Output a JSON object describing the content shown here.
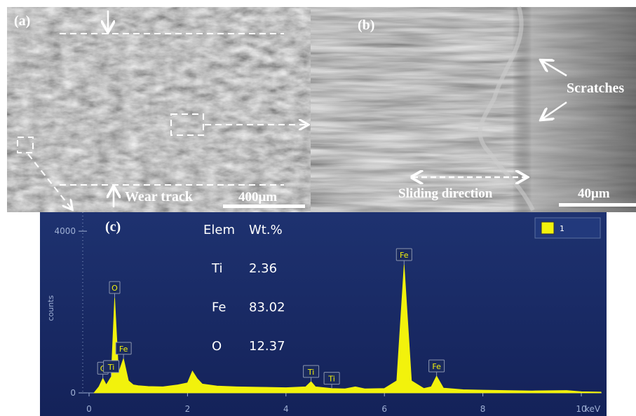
{
  "panels": {
    "a": {
      "label": "(a)",
      "track_label": "Wear track",
      "scale_bar": "400μm"
    },
    "b": {
      "label": "(b)",
      "annotation": "Scratches",
      "direction_label": "Sliding direction",
      "scale_bar": "40μm"
    }
  },
  "chart_data": {
    "type": "area",
    "label": "(c)",
    "y_label": "counts",
    "x_label": "keV",
    "x": [
      0.1,
      0.2,
      0.28,
      0.35,
      0.45,
      0.52,
      0.6,
      0.7,
      0.8,
      0.9,
      1.0,
      1.2,
      1.5,
      1.8,
      2.0,
      2.1,
      2.2,
      2.3,
      2.6,
      3.0,
      3.5,
      4.0,
      4.4,
      4.51,
      4.6,
      4.93,
      5.2,
      5.41,
      5.6,
      6.0,
      6.25,
      6.4,
      6.55,
      6.8,
      6.95,
      7.06,
      7.2,
      7.6,
      8.0,
      9.0,
      9.7,
      10.0,
      10.4
    ],
    "series": [
      {
        "name": "1",
        "color": "#f2f20c",
        "values": [
          0,
          150,
          360,
          200,
          400,
          2355,
          500,
          850,
          300,
          200,
          180,
          160,
          150,
          200,
          250,
          540,
          350,
          220,
          170,
          150,
          140,
          130,
          150,
          280,
          150,
          110,
          100,
          150,
          100,
          110,
          300,
          3170,
          300,
          110,
          150,
          415,
          120,
          80,
          70,
          50,
          60,
          30,
          20
        ]
      }
    ],
    "xlim": [
      0,
      10.4
    ],
    "ylim": [
      0,
      4400
    ],
    "xticks": [
      0,
      2,
      4,
      6,
      8,
      10
    ],
    "yticks": [
      0,
      4000
    ],
    "peaks": [
      {
        "label": "C",
        "x": 0.28
      },
      {
        "label": "Ti",
        "x": 0.45
      },
      {
        "label": "O",
        "x": 0.52
      },
      {
        "label": "Fe",
        "x": 0.7
      },
      {
        "label": "Ti",
        "x": 4.51
      },
      {
        "label": "Ti",
        "x": 4.93
      },
      {
        "label": "Fe",
        "x": 6.4
      },
      {
        "label": "Fe",
        "x": 7.06
      }
    ],
    "table": {
      "header": [
        "Elem",
        "Wt.%"
      ],
      "rows": [
        [
          "Ti",
          2.36
        ],
        [
          "Fe",
          83.02
        ],
        [
          "O",
          12.37
        ]
      ]
    }
  }
}
